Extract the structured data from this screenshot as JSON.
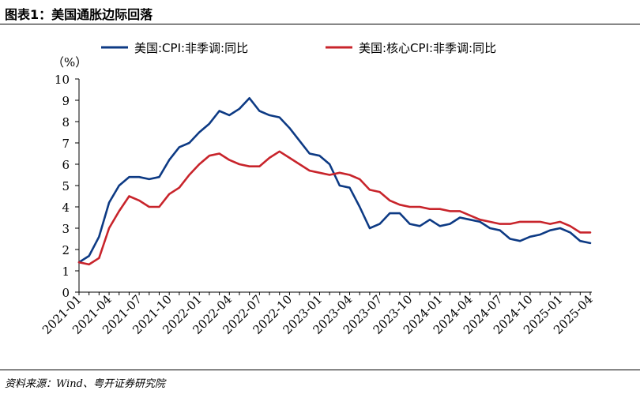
{
  "figure": {
    "title": "图表1：美国通胀边际回落",
    "source": "资料来源：Wind、粤开证券研究院"
  },
  "colors": {
    "series1": "#0d3a84",
    "series2": "#c8242b",
    "axis": "#000000"
  },
  "chart_data": {
    "type": "line",
    "ylabel": "（%）",
    "ylim": [
      0,
      10
    ],
    "yticks": [
      0,
      1,
      2,
      3,
      4,
      5,
      6,
      7,
      8,
      9,
      10
    ],
    "grid": false,
    "legend": "top",
    "xtick_labels": [
      "2021-01",
      "2021-04",
      "2021-07",
      "2021-10",
      "2022-01",
      "2022-04",
      "2022-07",
      "2022-10",
      "2023-01",
      "2023-04",
      "2023-07",
      "2023-10",
      "2024-01",
      "2024-04",
      "2024-07",
      "2024-10",
      "2025-01",
      "2025-04"
    ],
    "x": [
      "2021-01",
      "2021-02",
      "2021-03",
      "2021-04",
      "2021-05",
      "2021-06",
      "2021-07",
      "2021-08",
      "2021-09",
      "2021-10",
      "2021-11",
      "2021-12",
      "2022-01",
      "2022-02",
      "2022-03",
      "2022-04",
      "2022-05",
      "2022-06",
      "2022-07",
      "2022-08",
      "2022-09",
      "2022-10",
      "2022-11",
      "2022-12",
      "2023-01",
      "2023-02",
      "2023-03",
      "2023-04",
      "2023-05",
      "2023-06",
      "2023-07",
      "2023-08",
      "2023-09",
      "2023-10",
      "2023-11",
      "2023-12",
      "2024-01",
      "2024-02",
      "2024-03",
      "2024-04",
      "2024-05",
      "2024-06",
      "2024-07",
      "2024-08",
      "2024-09",
      "2024-10",
      "2024-11",
      "2024-12",
      "2025-01",
      "2025-02",
      "2025-03",
      "2025-04"
    ],
    "series": [
      {
        "name": "美国:CPI:非季调:同比",
        "values": [
          1.4,
          1.7,
          2.6,
          4.2,
          5.0,
          5.4,
          5.4,
          5.3,
          5.4,
          6.2,
          6.8,
          7.0,
          7.5,
          7.9,
          8.5,
          8.3,
          8.6,
          9.1,
          8.5,
          8.3,
          8.2,
          7.7,
          7.1,
          6.5,
          6.4,
          6.0,
          5.0,
          4.9,
          4.0,
          3.0,
          3.2,
          3.7,
          3.7,
          3.2,
          3.1,
          3.4,
          3.1,
          3.2,
          3.5,
          3.4,
          3.3,
          3.0,
          2.9,
          2.5,
          2.4,
          2.6,
          2.7,
          2.9,
          3.0,
          2.8,
          2.4,
          2.3
        ]
      },
      {
        "name": "美国:核心CPI:非季调:同比",
        "values": [
          1.4,
          1.3,
          1.6,
          3.0,
          3.8,
          4.5,
          4.3,
          4.0,
          4.0,
          4.6,
          4.9,
          5.5,
          6.0,
          6.4,
          6.5,
          6.2,
          6.0,
          5.9,
          5.9,
          6.3,
          6.6,
          6.3,
          6.0,
          5.7,
          5.6,
          5.5,
          5.6,
          5.5,
          5.3,
          4.8,
          4.7,
          4.3,
          4.1,
          4.0,
          4.0,
          3.9,
          3.9,
          3.8,
          3.8,
          3.6,
          3.4,
          3.3,
          3.2,
          3.2,
          3.3,
          3.3,
          3.3,
          3.2,
          3.3,
          3.1,
          2.8,
          2.8
        ]
      }
    ]
  }
}
